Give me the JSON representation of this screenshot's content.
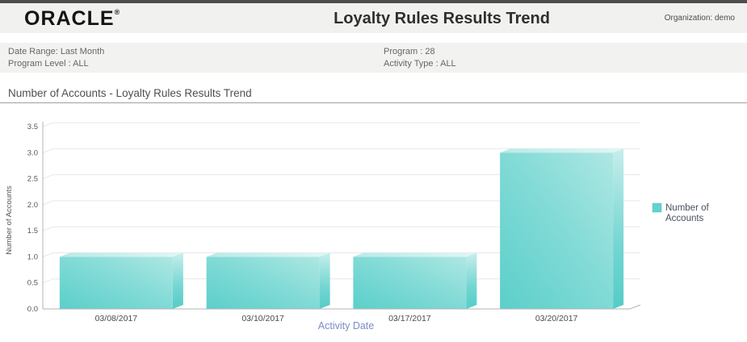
{
  "header": {
    "logo": "ORACLE",
    "registered_mark": "®",
    "title": "Loyalty Rules Results Trend",
    "organization": "Organization: demo"
  },
  "parameters": {
    "date_range": "Date Range: Last Month",
    "program_level": "Program Level : ALL",
    "program": "Program : 28",
    "activity_type": "Activity Type : ALL"
  },
  "section": {
    "title": "Number of Accounts - Loyalty Rules Results Trend"
  },
  "chart_data": {
    "type": "bar",
    "style": "3d",
    "title": "Number of Accounts - Loyalty Rules Results Trend",
    "categories": [
      "03/08/2017",
      "03/10/2017",
      "03/17/2017",
      "03/20/2017"
    ],
    "values": [
      1,
      1,
      1,
      3
    ],
    "series": [
      {
        "name": "Number of Accounts",
        "values": [
          1,
          1,
          1,
          3
        ]
      }
    ],
    "xlabel": "Activity Date",
    "ylabel": "Number of Accounts",
    "ylim": [
      0,
      3.5
    ],
    "ytick_step": 0.5,
    "ytick_labels": [
      "0.0",
      "0.5",
      "1.0",
      "1.5",
      "2.0",
      "2.5",
      "3.0",
      "3.5"
    ],
    "grid": true,
    "legend": {
      "label": "Number of Accounts",
      "lines": [
        "Number of",
        "Accounts"
      ],
      "position": "right"
    },
    "colors": {
      "bar_main": "#62d2ce",
      "bar_light": "#aee7e3",
      "bar_dark": "#55ccc7",
      "grid_line": "#e7e7e7",
      "axis_line": "#b3b3b3",
      "tick_text": "#565656",
      "category_text": "#4a4a4a",
      "xlabel_text": "#7d8cc5",
      "legend_text": "#47505f"
    }
  }
}
